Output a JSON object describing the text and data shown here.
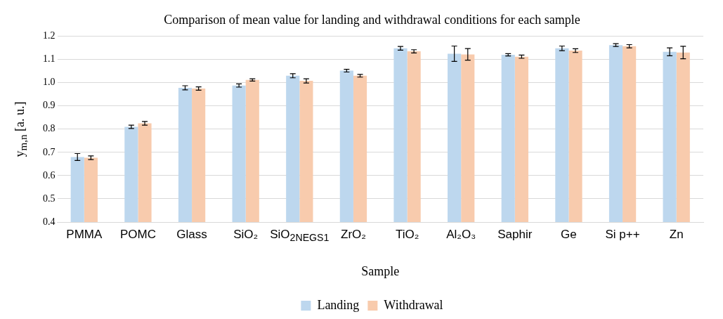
{
  "chart_data": {
    "type": "bar",
    "title": "Comparison of mean value for landing and withdrawal conditions for each sample",
    "xlabel": "Sample",
    "ylabel": "y$_{m,n}$ [a. u.]",
    "categories": [
      "PMMA",
      "POMC",
      "Glass",
      "SiO₂",
      "SiO$_{2NEGS1}$",
      "ZrO₂",
      "TiO₂",
      "Al₂O₃",
      "Saphir",
      "Ge",
      "Si p++",
      "Zn"
    ],
    "series": [
      {
        "name": "Landing",
        "color": "#bdd7ee",
        "values": [
          0.68,
          0.81,
          0.978,
          0.988,
          1.03,
          1.052,
          1.148,
          1.125,
          1.12,
          1.148,
          1.162,
          1.133
        ],
        "errors": [
          0.015,
          0.007,
          0.009,
          0.007,
          0.009,
          0.006,
          0.008,
          0.033,
          0.005,
          0.01,
          0.006,
          0.017
        ]
      },
      {
        "name": "Withdrawal",
        "color": "#f8cbad",
        "values": [
          0.677,
          0.825,
          0.975,
          1.012,
          1.008,
          1.03,
          1.135,
          1.122,
          1.112,
          1.138,
          1.157,
          1.13
        ],
        "errors": [
          0.008,
          0.008,
          0.007,
          0.005,
          0.009,
          0.006,
          0.007,
          0.025,
          0.007,
          0.008,
          0.007,
          0.027
        ]
      }
    ],
    "ylim": [
      0.4,
      1.2
    ],
    "yticks": [
      0.4,
      0.5,
      0.6,
      0.7,
      0.8,
      0.9,
      {
        "value": 1,
        "label": "1.0"
      },
      1.1,
      1.2
    ],
    "grid": "y",
    "legend": "bottom"
  }
}
